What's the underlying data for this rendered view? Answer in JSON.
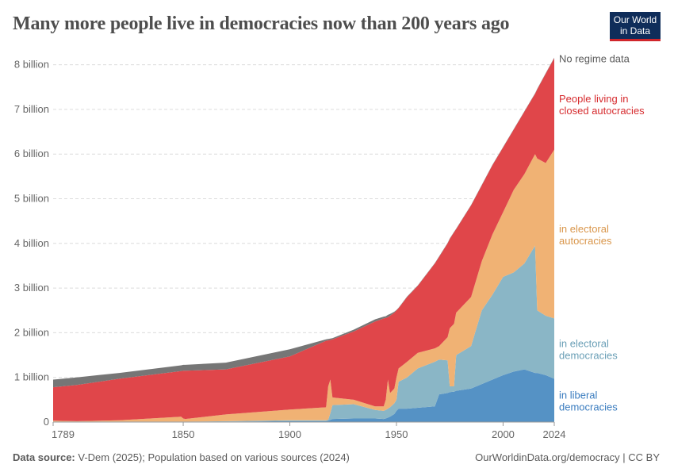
{
  "header": {
    "title": "Many more people live in democracies now than 200 years ago",
    "logo_text": "Our World in Data"
  },
  "footer": {
    "source_label": "Data source:",
    "source_text": " V-Dem (2025); Population based on various sources (2024)",
    "link_text": "OurWorldinData.org/democracy | CC BY"
  },
  "chart_data": {
    "type": "area",
    "stacked": true,
    "title": "Many more people live in democracies now than 200 years ago",
    "xlabel": "",
    "ylabel": "",
    "xlim": [
      1789,
      2024
    ],
    "ylim": [
      0,
      8000000000
    ],
    "grid": "horizontal dashed",
    "legend": "right, inline labels",
    "x_ticks": [
      "1789",
      "1850",
      "1900",
      "1950",
      "2000",
      "2024"
    ],
    "y_ticks": [
      "0",
      "1 billion",
      "2 billion",
      "3 billion",
      "4 billion",
      "5 billion",
      "6 billion",
      "7 billion",
      "8 billion"
    ],
    "y_tick_values": [
      0,
      1,
      2,
      3,
      4,
      5,
      6,
      7,
      8
    ],
    "unit": "billion",
    "x": [
      1789,
      1800,
      1820,
      1849,
      1850,
      1851,
      1870,
      1900,
      1917,
      1918,
      1919,
      1920,
      1930,
      1940,
      1944,
      1945,
      1946,
      1947,
      1949,
      1950,
      1951,
      1955,
      1960,
      1968,
      1970,
      1974,
      1975,
      1977,
      1978,
      1985,
      1990,
      1995,
      2000,
      2005,
      2010,
      2015,
      2016,
      2020,
      2024
    ],
    "series": [
      {
        "name": "in liberal democracies",
        "color": "#5592c5",
        "label_color": "#3a7cbf",
        "values": [
          0.01,
          0.01,
          0.01,
          0.01,
          0.01,
          0.01,
          0.01,
          0.02,
          0.02,
          0.03,
          0.05,
          0.07,
          0.08,
          0.08,
          0.07,
          0.08,
          0.1,
          0.12,
          0.18,
          0.25,
          0.3,
          0.3,
          0.32,
          0.35,
          0.62,
          0.65,
          0.67,
          0.68,
          0.7,
          0.75,
          0.85,
          0.95,
          1.05,
          1.13,
          1.18,
          1.1,
          1.1,
          1.05,
          0.97
        ]
      },
      {
        "name": "in electoral democracies",
        "color": "#8ab6c6",
        "label_color": "#6a9fb6",
        "values": [
          0,
          0,
          0,
          0,
          0,
          0,
          0.01,
          0.02,
          0.02,
          0.02,
          0.15,
          0.31,
          0.32,
          0.19,
          0.18,
          0.19,
          0.2,
          0.21,
          0.24,
          0.25,
          0.6,
          0.7,
          0.88,
          1.0,
          0.78,
          0.73,
          0.13,
          0.12,
          0.8,
          0.95,
          1.65,
          1.9,
          2.2,
          2.22,
          2.37,
          2.85,
          1.4,
          1.33,
          1.35
        ]
      },
      {
        "name": "in electoral autocracies",
        "color": "#f0b274",
        "label_color": "#d9964b",
        "values": [
          0.02,
          0.01,
          0.03,
          0.11,
          0.07,
          0.06,
          0.15,
          0.24,
          0.29,
          0.75,
          0.75,
          0.17,
          0.1,
          0.08,
          0.1,
          0.23,
          0.65,
          0.32,
          0.33,
          0.5,
          0.3,
          0.35,
          0.35,
          0.3,
          0.3,
          0.52,
          1.3,
          1.4,
          0.95,
          1.1,
          1.1,
          1.35,
          1.45,
          1.85,
          2.0,
          2.05,
          3.4,
          3.42,
          3.78
        ]
      },
      {
        "name": "People living in closed autocracies",
        "color": "#e0464a",
        "label_color": "#d62b2e",
        "values": [
          0.75,
          0.81,
          0.93,
          1.02,
          1.07,
          1.08,
          1.01,
          1.19,
          1.49,
          1.03,
          0.89,
          1.3,
          1.53,
          1.9,
          1.97,
          1.83,
          1.4,
          1.73,
          1.7,
          1.5,
          1.35,
          1.45,
          1.5,
          1.9,
          2.0,
          2.1,
          2.0,
          2.05,
          1.87,
          2.05,
          1.7,
          1.55,
          1.45,
          1.35,
          1.4,
          1.35,
          1.55,
          2.0,
          2.05
        ]
      },
      {
        "name": "No regime data",
        "color": "#767676",
        "label_color": "#5b5b5b",
        "values": [
          0.17,
          0.17,
          0.13,
          0.13,
          0.13,
          0.13,
          0.15,
          0.16,
          0.03,
          0.03,
          0.03,
          0.03,
          0.04,
          0.05,
          0.04,
          0.04,
          0.05,
          0.04,
          0.02,
          0.01,
          0.01,
          0.01,
          0.01,
          0.01,
          0.01,
          0.01,
          0.01,
          0.01,
          0.01,
          0.01,
          0.01,
          0.01,
          0.01,
          0.01,
          0.01,
          0.01,
          0.01,
          0.01,
          0.01
        ]
      }
    ]
  }
}
